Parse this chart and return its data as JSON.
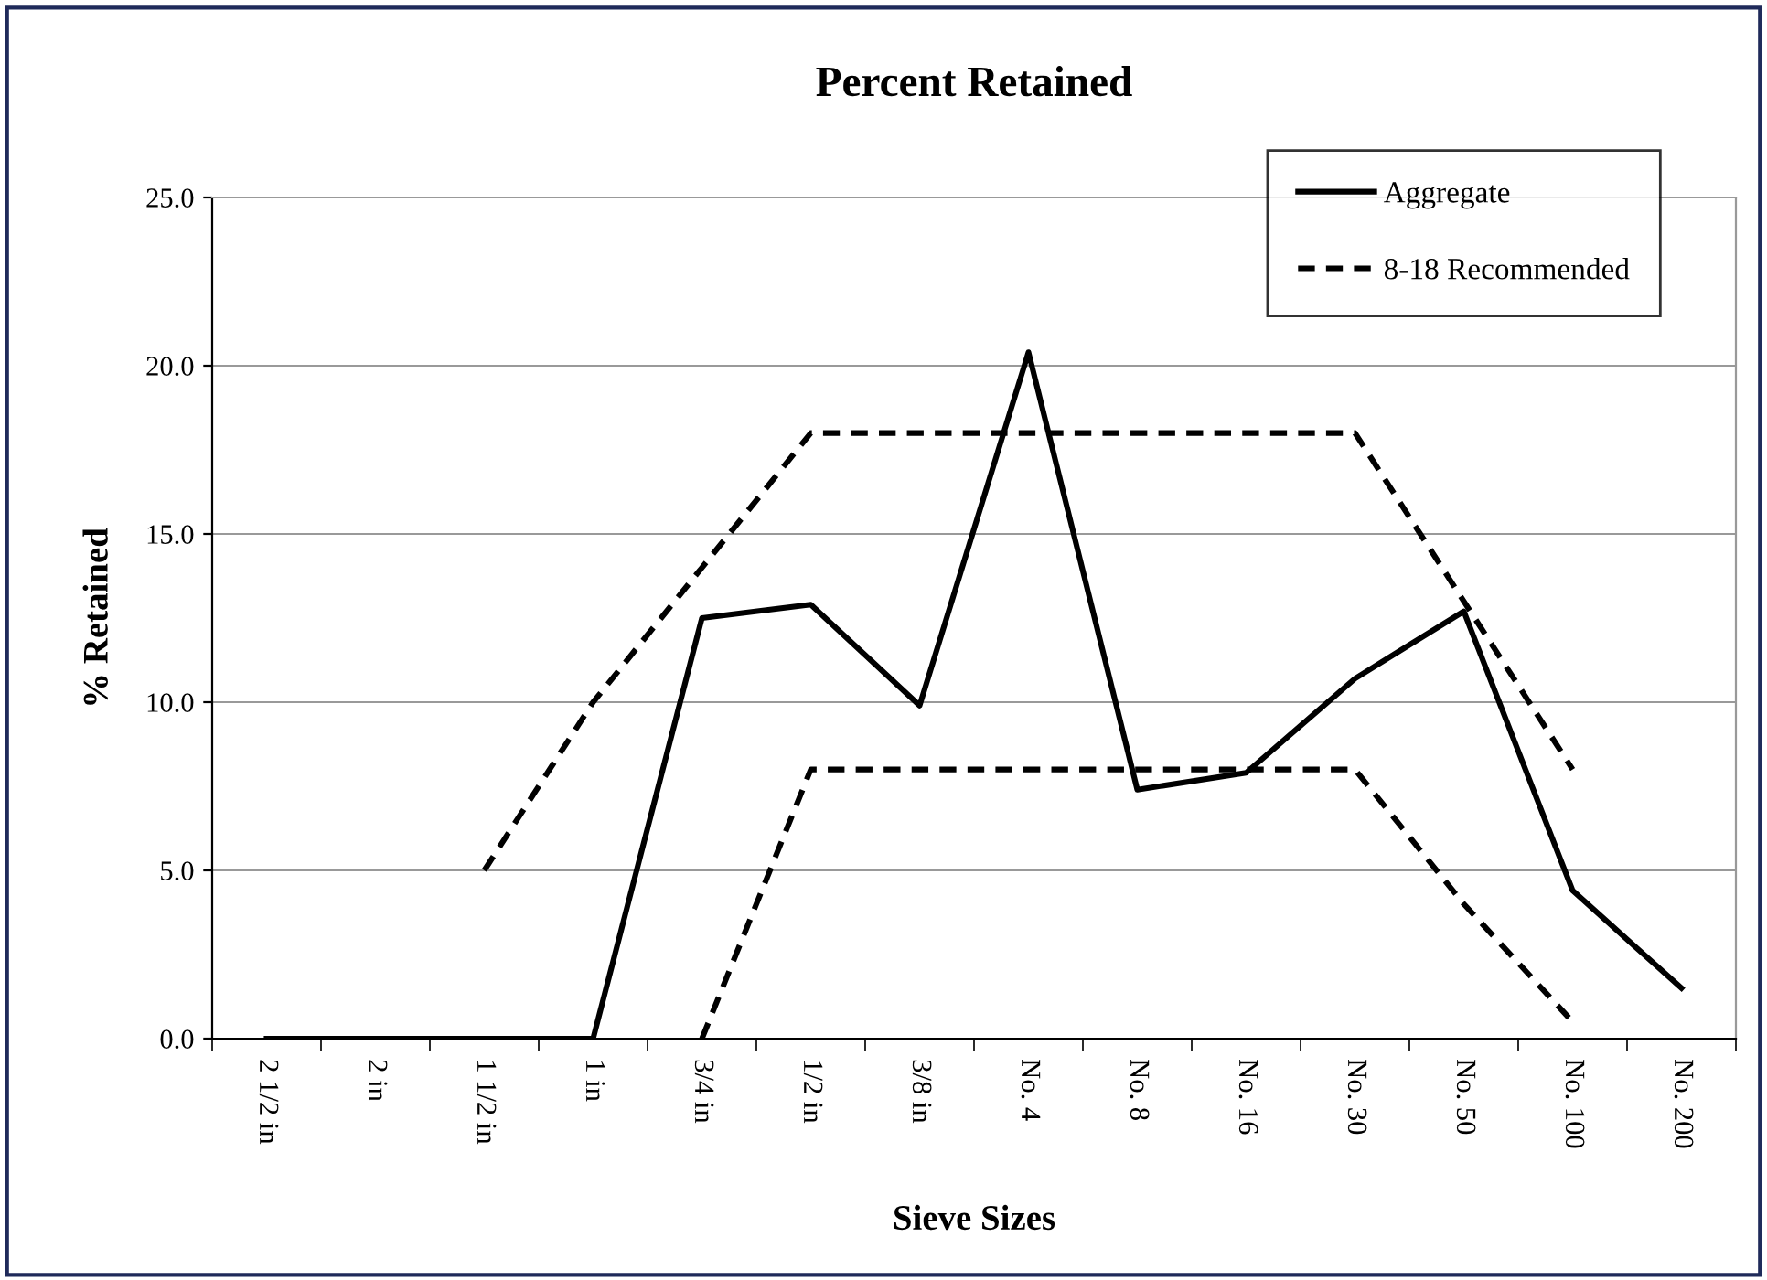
{
  "chart_data": {
    "type": "line",
    "title": "Percent Retained",
    "xlabel": "Sieve Sizes",
    "ylabel": "% Retained",
    "categories": [
      "2 1/2 in",
      "2 in",
      "1 1/2 in",
      "1 in",
      "3/4 in",
      "1/2 in",
      "3/8 in",
      "No. 4",
      "No. 8",
      "No. 16",
      "No. 30",
      "No. 50",
      "No. 100",
      "No. 200"
    ],
    "series": [
      {
        "name": "Aggregate",
        "color": "#000000",
        "line_style": "solid",
        "values": [
          0,
          0,
          0,
          0,
          12.5,
          12.9,
          9.9,
          20.4,
          7.4,
          7.9,
          10.7,
          12.7,
          4.4,
          1.5
        ]
      },
      {
        "name": "8-18 Recommended",
        "color": "#000000",
        "line_style": "dashed",
        "values": [
          null,
          null,
          5,
          10,
          14,
          18,
          18,
          18,
          18,
          18,
          18,
          13,
          8,
          null
        ]
      },
      {
        "color": "#000000",
        "line_style": "dashed",
        "values": [
          null,
          null,
          null,
          null,
          0,
          8,
          8,
          8,
          8,
          8,
          8,
          4,
          0.5,
          null
        ]
      }
    ],
    "ylim": [
      0,
      25
    ],
    "yticks": [
      {
        "value": 0,
        "label": "0.0"
      },
      {
        "value": 5,
        "label": "5.0"
      },
      {
        "value": 10,
        "label": "10.0"
      },
      {
        "value": 15,
        "label": "15.0"
      },
      {
        "value": 20,
        "label": "20.0"
      },
      {
        "value": 25,
        "label": "25.0"
      }
    ],
    "grid": "y",
    "legend": "top right",
    "marker": "none"
  }
}
